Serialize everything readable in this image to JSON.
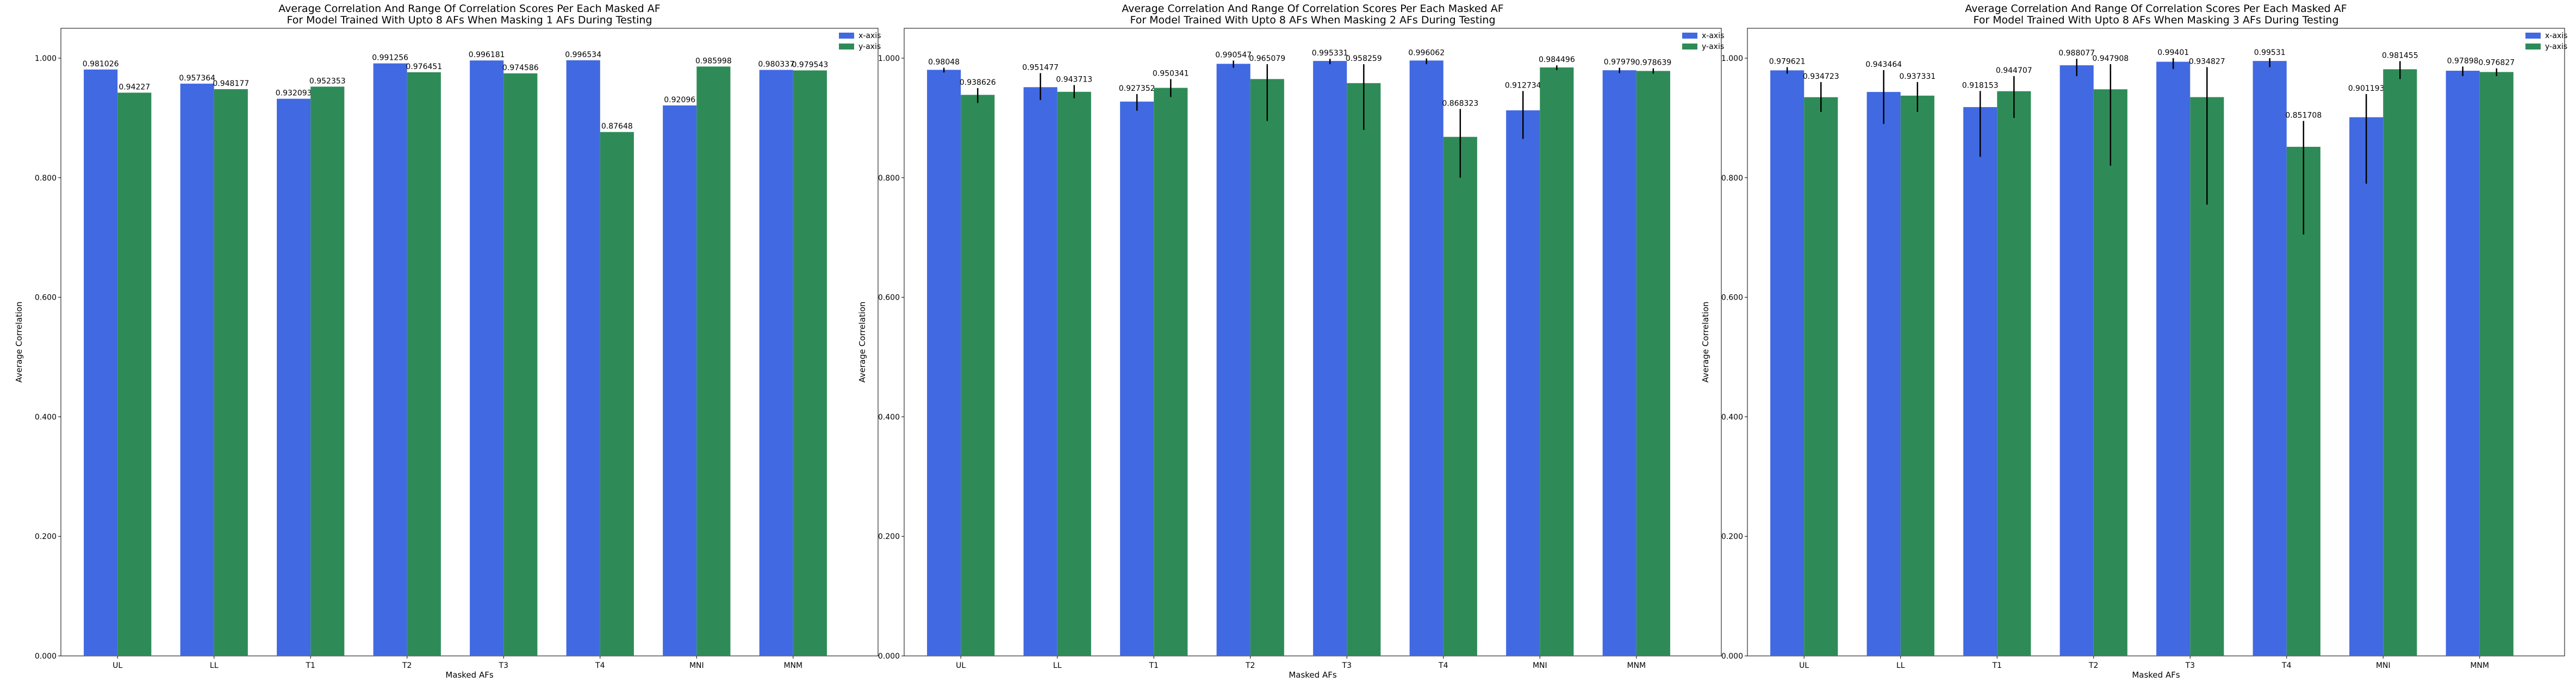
{
  "colors": {
    "x_axis": "#4169e1",
    "y_axis": "#2e8b57",
    "error_bar": "#000000"
  },
  "chart_data": [
    {
      "type": "bar",
      "title": "Average Correlation And Range Of Correlation Scores Per Each Masked AF",
      "subtitle": "For Model Trained With Upto 8 AFs When Masking 1 AFs During Testing",
      "xlabel": "Masked AFs",
      "ylabel": "Average Correlation",
      "ylim": [
        0,
        1.05
      ],
      "yticks": [
        "0.000",
        "0.200",
        "0.400",
        "0.600",
        "0.800",
        "1.000"
      ],
      "ytick_values": [
        0,
        0.2,
        0.4,
        0.6,
        0.8,
        1.0
      ],
      "legend_position": "top-right",
      "categories": [
        "UL",
        "LL",
        "T1",
        "T2",
        "T3",
        "T4",
        "MNI",
        "MNM"
      ],
      "series": [
        {
          "name": "x-axis",
          "values": [
            0.981026,
            0.957364,
            0.932093,
            0.991256,
            0.996181,
            0.996534,
            0.92096,
            0.980337
          ],
          "labels": [
            "0.981026",
            "0.957364",
            "0.932093",
            "0.991256",
            "0.996181",
            "0.996534",
            "0.92096",
            "0.980337"
          ],
          "err_low": [
            0.981026,
            0.957364,
            0.932093,
            0.991256,
            0.996181,
            0.996534,
            0.92096,
            0.980337
          ],
          "err_high": [
            0.981026,
            0.957364,
            0.932093,
            0.991256,
            0.996181,
            0.996534,
            0.92096,
            0.980337
          ]
        },
        {
          "name": "y-axis",
          "values": [
            0.94227,
            0.948177,
            0.952353,
            0.976451,
            0.974586,
            0.87648,
            0.985998,
            0.979543
          ],
          "labels": [
            "0.94227",
            "0.948177",
            "0.952353",
            "0.976451",
            "0.974586",
            "0.87648",
            "0.985998",
            "0.979543"
          ],
          "err_low": [
            0.94227,
            0.948177,
            0.952353,
            0.976451,
            0.974586,
            0.87648,
            0.985998,
            0.979543
          ],
          "err_high": [
            0.94227,
            0.948177,
            0.952353,
            0.976451,
            0.974586,
            0.87648,
            0.985998,
            0.979543
          ]
        }
      ]
    },
    {
      "type": "bar",
      "title": "Average Correlation And Range Of Correlation Scores Per Each Masked AF",
      "subtitle": "For Model Trained With Upto 8 AFs When Masking 2 AFs During Testing",
      "xlabel": "Masked AFs",
      "ylabel": "Average Correlation",
      "ylim": [
        0,
        1.05
      ],
      "yticks": [
        "0.000",
        "0.200",
        "0.400",
        "0.600",
        "0.800",
        "1.000"
      ],
      "ytick_values": [
        0,
        0.2,
        0.4,
        0.6,
        0.8,
        1.0
      ],
      "legend_position": "top-right",
      "categories": [
        "UL",
        "LL",
        "T1",
        "T2",
        "T3",
        "T4",
        "MNI",
        "MNM"
      ],
      "series": [
        {
          "name": "x-axis",
          "values": [
            0.98048,
            0.951477,
            0.927352,
            0.990547,
            0.995331,
            0.996062,
            0.912734,
            0.97979
          ],
          "labels": [
            "0.98048",
            "0.951477",
            "0.927352",
            "0.990547",
            "0.995331",
            "0.996062",
            "0.912734",
            "0.97979"
          ],
          "err_low": [
            0.976,
            0.93,
            0.912,
            0.984,
            0.99,
            0.99,
            0.865,
            0.975
          ],
          "err_high": [
            0.984,
            0.975,
            0.94,
            0.996,
            0.999,
            0.9995,
            0.945,
            0.984
          ]
        },
        {
          "name": "y-axis",
          "values": [
            0.938626,
            0.943713,
            0.950341,
            0.965079,
            0.958259,
            0.868323,
            0.984496,
            0.978639
          ],
          "labels": [
            "0.938626",
            "0.943713",
            "0.950341",
            "0.965079",
            "0.958259",
            "0.868323",
            "0.984496",
            "0.978639"
          ],
          "err_low": [
            0.925,
            0.933,
            0.935,
            0.895,
            0.88,
            0.8,
            0.98,
            0.974
          ],
          "err_high": [
            0.95,
            0.955,
            0.965,
            0.99,
            0.99,
            0.915,
            0.988,
            0.983
          ]
        }
      ]
    },
    {
      "type": "bar",
      "title": "Average Correlation And Range Of Correlation Scores Per Each Masked AF",
      "subtitle": "For Model Trained With Upto 8 AFs When Masking 3 AFs During Testing",
      "xlabel": "Masked AFs",
      "ylabel": "Average Correlation",
      "ylim": [
        0,
        1.05
      ],
      "yticks": [
        "0.000",
        "0.200",
        "0.400",
        "0.600",
        "0.800",
        "1.000"
      ],
      "ytick_values": [
        0,
        0.2,
        0.4,
        0.6,
        0.8,
        1.0
      ],
      "legend_position": "top-right",
      "categories": [
        "UL",
        "LL",
        "T1",
        "T2",
        "T3",
        "T4",
        "MNI",
        "MNM"
      ],
      "series": [
        {
          "name": "x-axis",
          "values": [
            0.979621,
            0.943464,
            0.918153,
            0.988077,
            0.99401,
            0.99531,
            0.901193,
            0.97898
          ],
          "labels": [
            "0.979621",
            "0.943464",
            "0.918153",
            "0.988077",
            "0.99401",
            "0.99531",
            "0.901193",
            "0.97898"
          ],
          "err_low": [
            0.974,
            0.89,
            0.835,
            0.97,
            0.982,
            0.985,
            0.79,
            0.97
          ],
          "err_high": [
            0.985,
            0.98,
            0.945,
            0.999,
            1.0,
            1.0,
            0.94,
            0.986
          ]
        },
        {
          "name": "y-axis",
          "values": [
            0.934723,
            0.937331,
            0.944707,
            0.947908,
            0.934827,
            0.851708,
            0.981455,
            0.976827
          ],
          "labels": [
            "0.934723",
            "0.937331",
            "0.944707",
            "0.947908",
            "0.934827",
            "0.851708",
            "0.981455",
            "0.976827"
          ],
          "err_low": [
            0.91,
            0.91,
            0.9,
            0.82,
            0.755,
            0.705,
            0.965,
            0.97
          ],
          "err_high": [
            0.96,
            0.96,
            0.97,
            0.99,
            0.985,
            0.895,
            0.995,
            0.983
          ]
        }
      ]
    }
  ]
}
